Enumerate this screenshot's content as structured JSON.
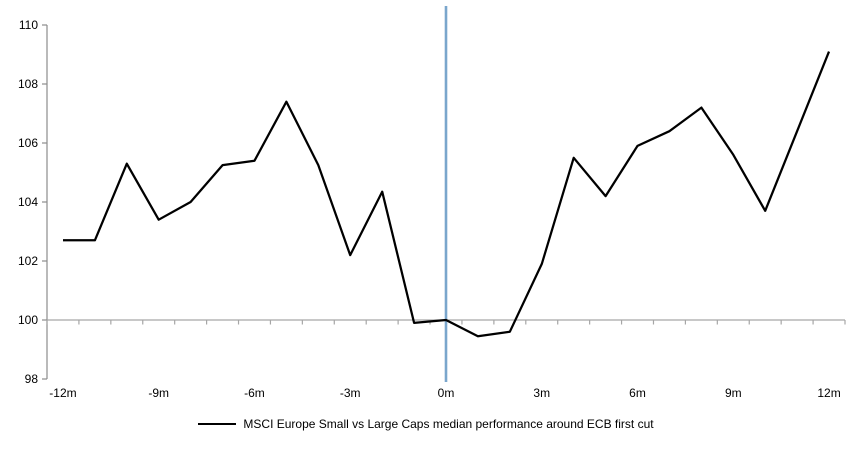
{
  "chart_data": {
    "type": "line",
    "title": "",
    "x": [
      -12,
      -11,
      -10,
      -9,
      -8,
      -7,
      -6,
      -5,
      -4,
      -3,
      -2,
      -1,
      0,
      1,
      2,
      3,
      4,
      5,
      6,
      7,
      8,
      9,
      10,
      11,
      12
    ],
    "series": [
      {
        "name": "MSCI Europe Small vs Large Caps median performance around ECB first cut",
        "color": "#000000",
        "values": [
          102.7,
          102.7,
          105.3,
          103.4,
          104.0,
          105.25,
          105.4,
          107.4,
          105.25,
          102.2,
          104.35,
          99.9,
          100.0,
          99.45,
          99.6,
          101.9,
          105.5,
          104.2,
          105.9,
          106.4,
          107.2,
          105.6,
          103.7,
          106.4,
          109.1
        ]
      }
    ],
    "ylim": [
      98,
      110
    ],
    "y_ticks": [
      98,
      100,
      102,
      104,
      106,
      108,
      110
    ],
    "x_tick_months": [
      -12,
      -9,
      -6,
      -3,
      0,
      3,
      6,
      9,
      12
    ],
    "x_tick_labels": [
      "-12m",
      "-9m",
      "-6m",
      "-3m",
      "0m",
      "3m",
      "6m",
      "9m",
      "12m"
    ],
    "baseline": 100,
    "event_line": {
      "x": 0,
      "color": "#7aa6cc"
    },
    "grid": "none",
    "legend_position": "bottom-center",
    "axis_color": "#8c8c8c",
    "baseline_color": "#a6a6a6"
  },
  "legend": {
    "label": "MSCI Europe Small vs Large Caps median performance around ECB first cut"
  }
}
